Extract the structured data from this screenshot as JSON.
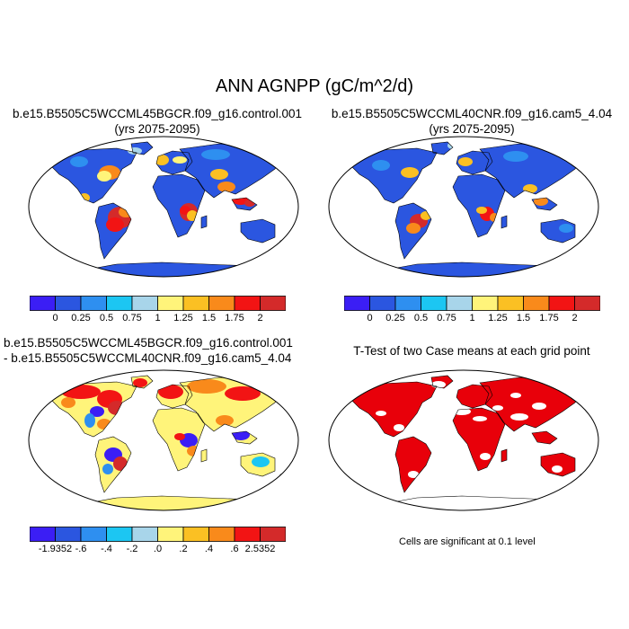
{
  "title": "ANN AGNPP (gC/m^2/d)",
  "chart_data": [
    {
      "type": "heatmap",
      "panel": "top-left",
      "title": "b.e15.B5505C5WCCML45BGCR.f09_g16.control.001",
      "subtitle": "(yrs 2075-2095)",
      "map_projection": "robinson",
      "colorbar": {
        "levels": [
          "0",
          "0.25",
          "0.5",
          "0.75",
          "1",
          "1.25",
          "1.5",
          "1.75",
          "2"
        ],
        "colors": [
          "#3b1ef5",
          "#2b56e0",
          "#2e8ff0",
          "#1cc6f2",
          "#a8d5ea",
          "#fff47a",
          "#fbc023",
          "#f98a1b",
          "#f21414",
          "#d42a2a"
        ]
      }
    },
    {
      "type": "heatmap",
      "panel": "top-right",
      "title": "b.e15.B5505C5WCCML40CNR.f09_g16.cam5_4.04",
      "subtitle": "(yrs 2075-2095)",
      "map_projection": "robinson",
      "colorbar": {
        "levels": [
          "0",
          "0.25",
          "0.5",
          "0.75",
          "1",
          "1.25",
          "1.5",
          "1.75",
          "2"
        ],
        "colors": [
          "#3b1ef5",
          "#2b56e0",
          "#2e8ff0",
          "#1cc6f2",
          "#a8d5ea",
          "#fff47a",
          "#fbc023",
          "#f98a1b",
          "#f21414",
          "#d42a2a"
        ]
      }
    },
    {
      "type": "heatmap",
      "panel": "bottom-left",
      "title": "b.e15.B5505C5WCCML45BGCR.f09_g16.control.001",
      "subtitle": "- b.e15.B5505C5WCCML40CNR.f09_g16.cam5_4.04",
      "map_projection": "robinson",
      "colorbar": {
        "levels": [
          "-1.9352",
          "-.6",
          "-.4",
          "-.2",
          ".0",
          ".2",
          ".4",
          ".6",
          "2.5352"
        ],
        "colors": [
          "#3b1ef5",
          "#2b56e0",
          "#2e8ff0",
          "#1cc6f2",
          "#a8d5ea",
          "#fff47a",
          "#fbc023",
          "#f98a1b",
          "#f21414",
          "#d42a2a"
        ]
      }
    },
    {
      "type": "heatmap",
      "panel": "bottom-right",
      "title": "T-Test of two Case means at each grid point",
      "map_projection": "robinson",
      "footnote": "Cells are significant at 0.1 level",
      "significant_color": "#e8000a"
    }
  ]
}
